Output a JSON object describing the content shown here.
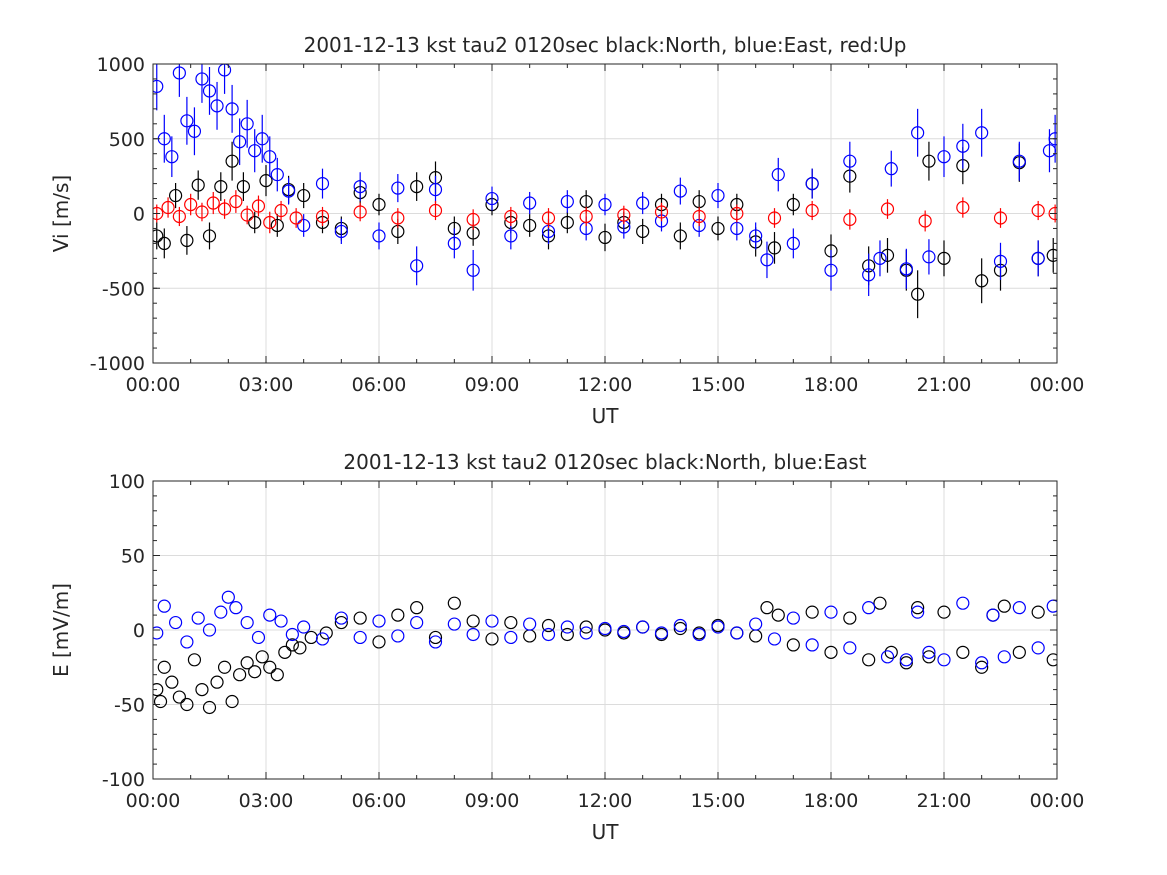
{
  "chart_data": [
    {
      "type": "scatter",
      "title": "2001-12-13 kst tau2 0120sec black:North, blue:East, red:Up",
      "xlabel": "UT",
      "ylabel": "Vi [m/s]",
      "ylim": [
        -1000,
        1000
      ],
      "xlim_hours": [
        0,
        24
      ],
      "yticks": [
        "1000",
        "500",
        "0",
        "-500",
        "-1000"
      ],
      "xticks": [
        "00:00",
        "03:00",
        "06:00",
        "09:00",
        "12:00",
        "15:00",
        "18:00",
        "21:00",
        "00:00"
      ],
      "grid": true,
      "marker": "open-circle",
      "error_bars": true,
      "series": [
        {
          "name": "North",
          "color": "#000000",
          "x_hours": [
            0.1,
            0.3,
            0.6,
            0.9,
            1.2,
            1.5,
            1.8,
            2.1,
            2.4,
            2.7,
            3.0,
            3.3,
            3.6,
            4.0,
            4.5,
            5.0,
            5.5,
            6.0,
            6.5,
            7.0,
            7.5,
            8.0,
            8.5,
            9.0,
            9.5,
            10.0,
            10.5,
            11.0,
            11.5,
            12.0,
            12.5,
            13.0,
            13.5,
            14.0,
            14.5,
            15.0,
            15.5,
            16.0,
            16.5,
            17.0,
            17.5,
            18.0,
            18.5,
            19.0,
            19.5,
            20.0,
            20.3,
            20.6,
            21.0,
            21.5,
            22.0,
            22.5,
            23.0,
            23.5,
            23.9
          ],
          "values": [
            -150,
            -200,
            120,
            -180,
            190,
            -150,
            180,
            350,
            180,
            -60,
            220,
            -80,
            160,
            120,
            -60,
            -100,
            140,
            60,
            -120,
            180,
            240,
            -100,
            -130,
            60,
            -60,
            -80,
            -150,
            -60,
            80,
            -160,
            -60,
            -120,
            60,
            -150,
            80,
            -100,
            60,
            -190,
            -230,
            60,
            200,
            -250,
            250,
            -350,
            -280,
            -380,
            -540,
            350,
            -300,
            320,
            -450,
            -380,
            340,
            -300,
            -280
          ]
        },
        {
          "name": "East",
          "color": "#0000ff",
          "x_hours": [
            0.1,
            0.3,
            0.5,
            0.7,
            0.9,
            1.1,
            1.3,
            1.5,
            1.7,
            1.9,
            2.1,
            2.3,
            2.5,
            2.7,
            2.9,
            3.1,
            3.3,
            3.6,
            4.0,
            4.5,
            5.0,
            5.5,
            6.0,
            6.5,
            7.0,
            7.5,
            8.0,
            8.5,
            9.0,
            9.5,
            10.0,
            10.5,
            11.0,
            11.5,
            12.0,
            12.5,
            13.0,
            13.5,
            14.0,
            14.5,
            15.0,
            15.5,
            16.0,
            16.3,
            16.6,
            17.0,
            17.5,
            18.0,
            18.5,
            19.0,
            19.3,
            19.6,
            20.0,
            20.3,
            20.6,
            21.0,
            21.5,
            22.0,
            22.5,
            23.0,
            23.5,
            23.8,
            23.95
          ],
          "values": [
            850,
            500,
            380,
            940,
            620,
            550,
            900,
            820,
            720,
            960,
            700,
            480,
            600,
            420,
            500,
            380,
            260,
            150,
            -80,
            200,
            -120,
            180,
            -150,
            170,
            -350,
            160,
            -200,
            -380,
            100,
            -150,
            70,
            -120,
            80,
            -100,
            60,
            -90,
            70,
            -50,
            150,
            -80,
            120,
            -100,
            -150,
            -310,
            260,
            -200,
            200,
            -380,
            350,
            -410,
            -300,
            300,
            -370,
            540,
            -290,
            380,
            450,
            540,
            -320,
            350,
            -300,
            420,
            500
          ]
        },
        {
          "name": "Up",
          "color": "#ff0000",
          "x_hours": [
            0.1,
            0.4,
            0.7,
            1.0,
            1.3,
            1.6,
            1.9,
            2.2,
            2.5,
            2.8,
            3.1,
            3.4,
            3.8,
            4.5,
            5.5,
            6.5,
            7.5,
            8.5,
            9.5,
            10.5,
            11.5,
            12.5,
            13.5,
            14.5,
            15.5,
            16.5,
            17.5,
            18.5,
            19.5,
            20.5,
            21.5,
            22.5,
            23.5,
            23.95
          ],
          "values": [
            0,
            40,
            -20,
            60,
            10,
            70,
            30,
            80,
            -10,
            50,
            -60,
            20,
            -30,
            -20,
            10,
            -30,
            20,
            -40,
            -20,
            -30,
            -20,
            -10,
            10,
            -20,
            0,
            -30,
            20,
            -40,
            30,
            -50,
            40,
            -30,
            20,
            0
          ]
        }
      ]
    },
    {
      "type": "scatter",
      "title": "2001-12-13 kst tau2 0120sec black:North, blue:East",
      "xlabel": "UT",
      "ylabel": "E [mV/m]",
      "ylim": [
        -100,
        100
      ],
      "xlim_hours": [
        0,
        24
      ],
      "yticks": [
        "100",
        "50",
        "0",
        "-50",
        "-100"
      ],
      "xticks": [
        "00:00",
        "03:00",
        "06:00",
        "09:00",
        "12:00",
        "15:00",
        "18:00",
        "21:00",
        "00:00"
      ],
      "grid": true,
      "marker": "open-circle",
      "error_bars": false,
      "series": [
        {
          "name": "North",
          "color": "#000000",
          "x_hours": [
            0.1,
            0.2,
            0.3,
            0.5,
            0.7,
            0.9,
            1.1,
            1.3,
            1.5,
            1.7,
            1.9,
            2.1,
            2.3,
            2.5,
            2.7,
            2.9,
            3.1,
            3.3,
            3.5,
            3.7,
            3.9,
            4.2,
            4.6,
            5.0,
            5.5,
            6.0,
            6.5,
            7.0,
            7.5,
            8.0,
            8.5,
            9.0,
            9.5,
            10.0,
            10.5,
            11.0,
            11.5,
            12.0,
            12.5,
            13.0,
            13.5,
            14.0,
            14.5,
            15.0,
            15.5,
            16.0,
            16.3,
            16.6,
            17.0,
            17.5,
            18.0,
            18.5,
            19.0,
            19.3,
            19.6,
            20.0,
            20.3,
            20.6,
            21.0,
            21.5,
            22.0,
            22.3,
            22.6,
            23.0,
            23.5,
            23.9
          ],
          "values": [
            -40,
            -48,
            -25,
            -35,
            -45,
            -50,
            -20,
            -40,
            -52,
            -35,
            -25,
            -48,
            -30,
            -22,
            -28,
            -18,
            -25,
            -30,
            -15,
            -10,
            -12,
            -5,
            -2,
            5,
            8,
            -8,
            10,
            15,
            -5,
            18,
            6,
            -6,
            5,
            -4,
            3,
            -3,
            2,
            0,
            -2,
            2,
            -3,
            1,
            -2,
            3,
            -2,
            -4,
            15,
            10,
            -10,
            12,
            -15,
            8,
            -20,
            18,
            -15,
            -22,
            15,
            -18,
            12,
            -15,
            -25,
            10,
            16,
            -15,
            12,
            -20
          ]
        },
        {
          "name": "East",
          "color": "#0000ff",
          "x_hours": [
            0.1,
            0.3,
            0.6,
            0.9,
            1.2,
            1.5,
            1.8,
            2.0,
            2.2,
            2.5,
            2.8,
            3.1,
            3.4,
            3.7,
            4.0,
            4.5,
            5.0,
            5.5,
            6.0,
            6.5,
            7.0,
            7.5,
            8.0,
            8.5,
            9.0,
            9.5,
            10.0,
            10.5,
            11.0,
            11.5,
            12.0,
            12.5,
            13.0,
            13.5,
            14.0,
            14.5,
            15.0,
            15.5,
            16.0,
            16.5,
            17.0,
            17.5,
            18.0,
            18.5,
            19.0,
            19.5,
            20.0,
            20.3,
            20.6,
            21.0,
            21.5,
            22.0,
            22.3,
            22.6,
            23.0,
            23.5,
            23.9
          ],
          "values": [
            -2,
            16,
            5,
            -8,
            8,
            0,
            12,
            22,
            15,
            5,
            -5,
            10,
            6,
            -3,
            2,
            -6,
            8,
            -5,
            6,
            -4,
            5,
            -8,
            4,
            -3,
            6,
            -5,
            4,
            -3,
            2,
            -2,
            1,
            -1,
            2,
            -2,
            3,
            -3,
            2,
            -2,
            4,
            -6,
            8,
            -10,
            12,
            -12,
            15,
            -18,
            -20,
            12,
            -15,
            -20,
            18,
            -22,
            10,
            -18,
            15,
            -12,
            16
          ]
        }
      ]
    }
  ]
}
